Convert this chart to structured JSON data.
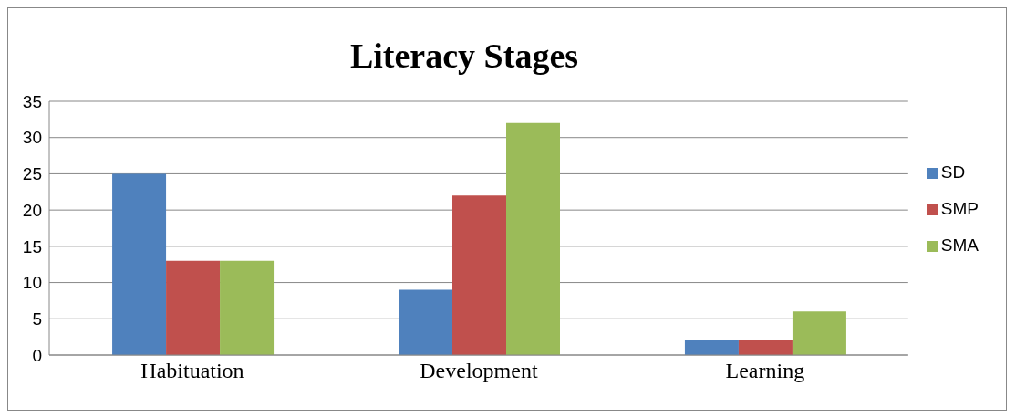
{
  "chart_data": {
    "type": "bar",
    "title": "Literacy Stages",
    "categories": [
      "Habituation",
      "Development",
      "Learning"
    ],
    "series": [
      {
        "name": "SD",
        "color": "#4f81bd",
        "values": [
          25,
          9,
          2
        ]
      },
      {
        "name": "SMP",
        "color": "#c0504d",
        "values": [
          13,
          22,
          2
        ]
      },
      {
        "name": "SMA",
        "color": "#9bbb59",
        "values": [
          13,
          32,
          6
        ]
      }
    ],
    "ylim": [
      0,
      35
    ],
    "yticks": [
      0,
      5,
      10,
      15,
      20,
      25,
      30,
      35
    ],
    "grid": "y",
    "legend": "right"
  }
}
